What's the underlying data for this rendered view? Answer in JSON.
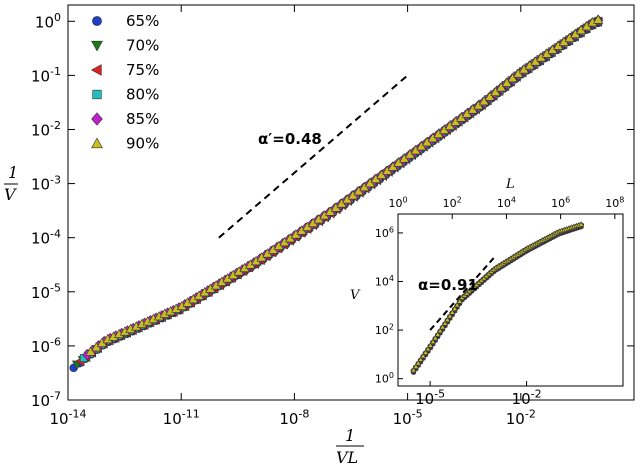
{
  "chart_data": [
    {
      "type": "scatter",
      "scale": {
        "x": "log",
        "y": "log"
      },
      "xlim": [
        1e-14,
        10
      ],
      "ylim": [
        1e-07,
        2
      ],
      "xticks": [
        {
          "v": 1e-14,
          "base": "10",
          "exp": "-14"
        },
        {
          "v": 1e-11,
          "base": "10",
          "exp": "-11"
        },
        {
          "v": 1e-08,
          "base": "10",
          "exp": "-8"
        },
        {
          "v": 1e-05,
          "base": "10",
          "exp": "-5"
        },
        {
          "v": 0.01,
          "base": "10",
          "exp": "-2"
        }
      ],
      "yticks": [
        {
          "v": 1e-07,
          "base": "10",
          "exp": "-7"
        },
        {
          "v": 1e-06,
          "base": "10",
          "exp": "-6"
        },
        {
          "v": 1e-05,
          "base": "10",
          "exp": "-5"
        },
        {
          "v": 0.0001,
          "base": "10",
          "exp": "-4"
        },
        {
          "v": 0.001,
          "base": "10",
          "exp": "-3"
        },
        {
          "v": 0.01,
          "base": "10",
          "exp": "-2"
        },
        {
          "v": 0.1,
          "base": "10",
          "exp": "-1"
        },
        {
          "v": 1,
          "base": "10",
          "exp": "0"
        }
      ],
      "xlabel": {
        "num": "1",
        "den": "VL"
      },
      "ylabel": {
        "num": "1",
        "den": "V"
      },
      "legend": {
        "placement": "top-left"
      },
      "series": [
        {
          "name": "65%",
          "marker": "circle",
          "color": "#1f3fc8"
        },
        {
          "name": "70%",
          "marker": "triangle-down",
          "color": "#1a7a1a"
        },
        {
          "name": "75%",
          "marker": "triangle-left",
          "color": "#e02020"
        },
        {
          "name": "80%",
          "marker": "square",
          "color": "#20c0c0"
        },
        {
          "name": "85%",
          "marker": "diamond",
          "color": "#c020c8"
        },
        {
          "name": "90%",
          "marker": "triangle-up",
          "color": "#c8c020"
        }
      ],
      "curve": {
        "knots": [
          [
            1e-14,
            3.5e-07
          ],
          [
            1e-13,
            1.2e-06
          ],
          [
            1e-11,
            5e-06
          ],
          [
            1e-09,
            3.5e-05
          ],
          [
            1e-07,
            0.0003
          ],
          [
            1e-05,
            0.003
          ],
          [
            0.001,
            0.03
          ],
          [
            0.01,
            0.11
          ],
          [
            1,
            1
          ]
        ],
        "points": [
          [
            1e-14,
            3.5e-07
          ],
          [
            1e-13,
            1.2e-06
          ],
          [
            1e-11,
            5e-06
          ],
          [
            1e-09,
            3.5e-05
          ],
          [
            1e-07,
            0.0003
          ],
          [
            1e-05,
            0.003
          ],
          [
            0.001,
            0.03
          ],
          [
            0.01,
            0.11
          ],
          [
            0.1,
            0.35
          ],
          [
            0.3,
            0.5
          ],
          [
            1,
            1
          ]
        ]
      },
      "guide_line": {
        "label": "α′=0.48",
        "from": [
          1e-10,
          0.0001
        ],
        "to": [
          1e-05,
          0.1
        ]
      }
    },
    {
      "type": "scatter",
      "scale": {
        "x": "log",
        "y": "log"
      },
      "xlim": [
        1e-06,
        10
      ],
      "ylim": [
        0.5,
        6000000.0
      ],
      "top_xlim": [
        1,
        200000000.0
      ],
      "xticks": [
        {
          "v": 1e-05,
          "base": "10",
          "exp": "-5"
        },
        {
          "v": 0.01,
          "base": "10",
          "exp": "-2"
        }
      ],
      "yticks": [
        {
          "v": 1,
          "base": "10",
          "exp": "0"
        },
        {
          "v": 100,
          "base": "10",
          "exp": "2"
        },
        {
          "v": 10000.0,
          "base": "10",
          "exp": "4"
        },
        {
          "v": 1000000.0,
          "base": "10",
          "exp": "6"
        }
      ],
      "top_xticks": [
        {
          "v": 1,
          "base": "10",
          "exp": "0"
        },
        {
          "v": 100,
          "base": "10",
          "exp": "2"
        },
        {
          "v": 10000.0,
          "base": "10",
          "exp": "4"
        },
        {
          "v": 1000000.0,
          "base": "10",
          "exp": "6"
        },
        {
          "v": 100000000.0,
          "base": "10",
          "exp": "8"
        }
      ],
      "ylabel": "V",
      "top_xlabel": "L",
      "curve": {
        "knots": [
          [
            3e-06,
            2
          ],
          [
            1e-05,
            20.0
          ],
          [
            0.0001,
            2000.0
          ],
          [
            0.001,
            30000.0
          ],
          [
            0.01,
            200000.0
          ],
          [
            0.1,
            1000000.0
          ],
          [
            0.5,
            2000000.0
          ]
        ],
        "points": [
          [
            3e-06,
            2
          ],
          [
            1e-05,
            20.0
          ],
          [
            0.0001,
            2000.0
          ],
          [
            0.001,
            30000.0
          ],
          [
            0.01,
            200000.0
          ],
          [
            0.1,
            1000000.0
          ],
          [
            0.5,
            2000000.0
          ]
        ]
      },
      "guide_line": {
        "label": "α=0.91",
        "from": [
          1e-05,
          100
        ],
        "to": [
          0.001,
          100000.0
        ]
      }
    }
  ]
}
